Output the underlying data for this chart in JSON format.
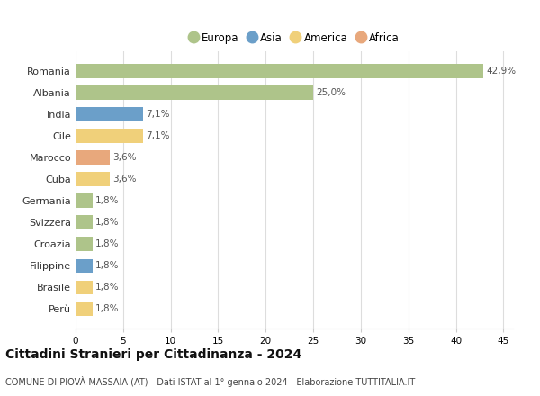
{
  "countries": [
    "Romania",
    "Albania",
    "India",
    "Cile",
    "Marocco",
    "Cuba",
    "Germania",
    "Svizzera",
    "Croazia",
    "Filippine",
    "Brasile",
    "Perù"
  ],
  "values": [
    42.9,
    25.0,
    7.1,
    7.1,
    3.6,
    3.6,
    1.8,
    1.8,
    1.8,
    1.8,
    1.8,
    1.8
  ],
  "labels": [
    "42,9%",
    "25,0%",
    "7,1%",
    "7,1%",
    "3,6%",
    "3,6%",
    "1,8%",
    "1,8%",
    "1,8%",
    "1,8%",
    "1,8%",
    "1,8%"
  ],
  "colors": [
    "#aec48a",
    "#aec48a",
    "#6b9fc9",
    "#f0d07a",
    "#e8a87c",
    "#f0d07a",
    "#aec48a",
    "#aec48a",
    "#aec48a",
    "#6b9fc9",
    "#f0d07a",
    "#f0d07a"
  ],
  "legend_labels": [
    "Europa",
    "Asia",
    "America",
    "Africa"
  ],
  "legend_colors": [
    "#aec48a",
    "#6b9fc9",
    "#f0d07a",
    "#e8a87c"
  ],
  "title": "Cittadini Stranieri per Cittadinanza - 2024",
  "subtitle": "COMUNE DI PIOVÀ MASSAIA (AT) - Dati ISTAT al 1° gennaio 2024 - Elaborazione TUTTITALIA.IT",
  "xlim": [
    0,
    46
  ],
  "xticks": [
    0,
    5,
    10,
    15,
    20,
    25,
    30,
    35,
    40,
    45
  ],
  "bg_color": "#ffffff",
  "grid_color": "#dddddd",
  "bar_height": 0.65,
  "label_fontsize": 7.5,
  "ytick_fontsize": 8,
  "xtick_fontsize": 7.5,
  "title_fontsize": 10,
  "subtitle_fontsize": 7
}
